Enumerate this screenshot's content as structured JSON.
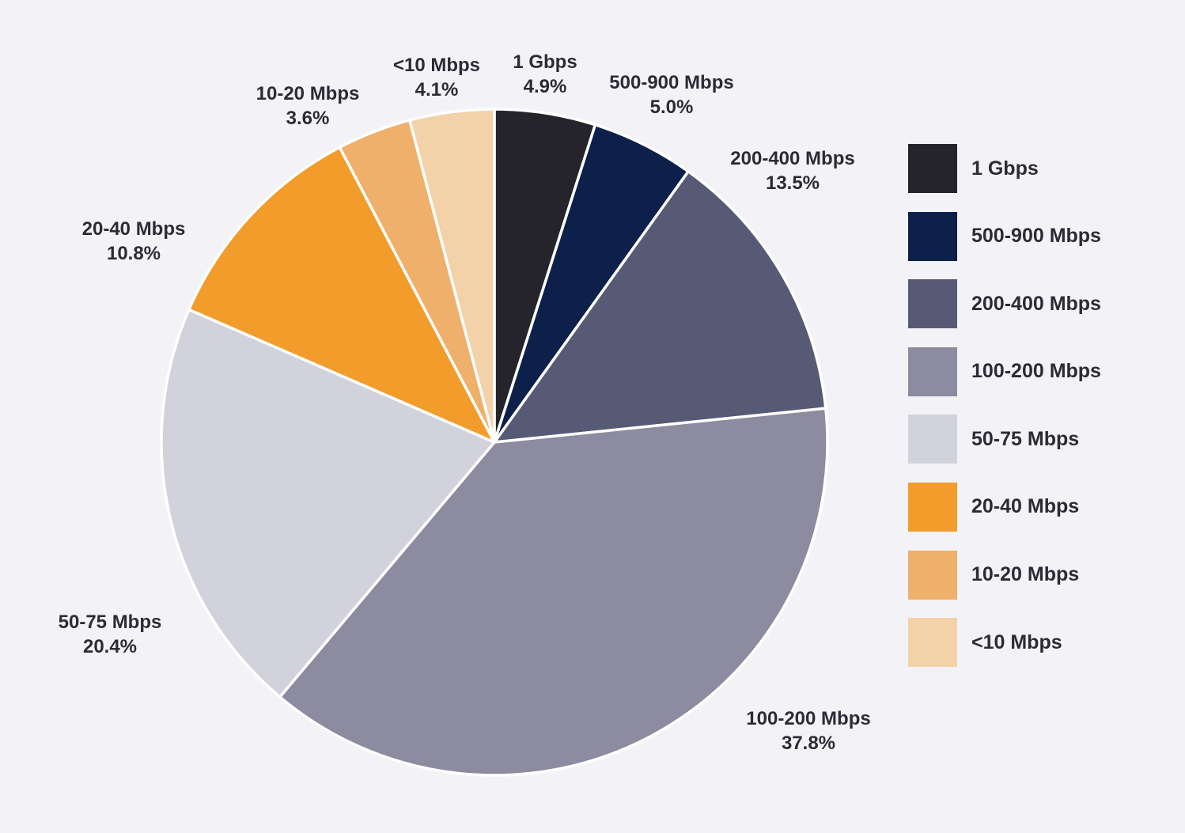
{
  "chart_data": {
    "type": "pie",
    "title": "",
    "slices": [
      {
        "label": "1 Gbps",
        "value": 4.9,
        "value_text": "4.9%",
        "color": "#26242b"
      },
      {
        "label": "500-900 Mbps",
        "value": 5.0,
        "value_text": "5.0%",
        "color": "#0c2049"
      },
      {
        "label": "200-400 Mbps",
        "value": 13.5,
        "value_text": "13.5%",
        "color": "#565a75"
      },
      {
        "label": "100-200 Mbps",
        "value": 37.8,
        "value_text": "37.8%",
        "color": "#8d8b9f"
      },
      {
        "label": "50-75 Mbps",
        "value": 20.4,
        "value_text": "20.4%",
        "color": "#d2d2dc"
      },
      {
        "label": "20-40 Mbps",
        "value": 10.8,
        "value_text": "10.8%",
        "color": "#f29c2b"
      },
      {
        "label": "10-20 Mbps",
        "value": 3.6,
        "value_text": "3.6%",
        "color": "#efb06c"
      },
      {
        "label": "<10 Mbps",
        "value": 4.1,
        "value_text": "4.1%",
        "color": "#f3d2aa"
      }
    ],
    "start_angle_deg": 0,
    "direction": "clockwise",
    "legend_position": "right",
    "label_placement": "outside"
  }
}
